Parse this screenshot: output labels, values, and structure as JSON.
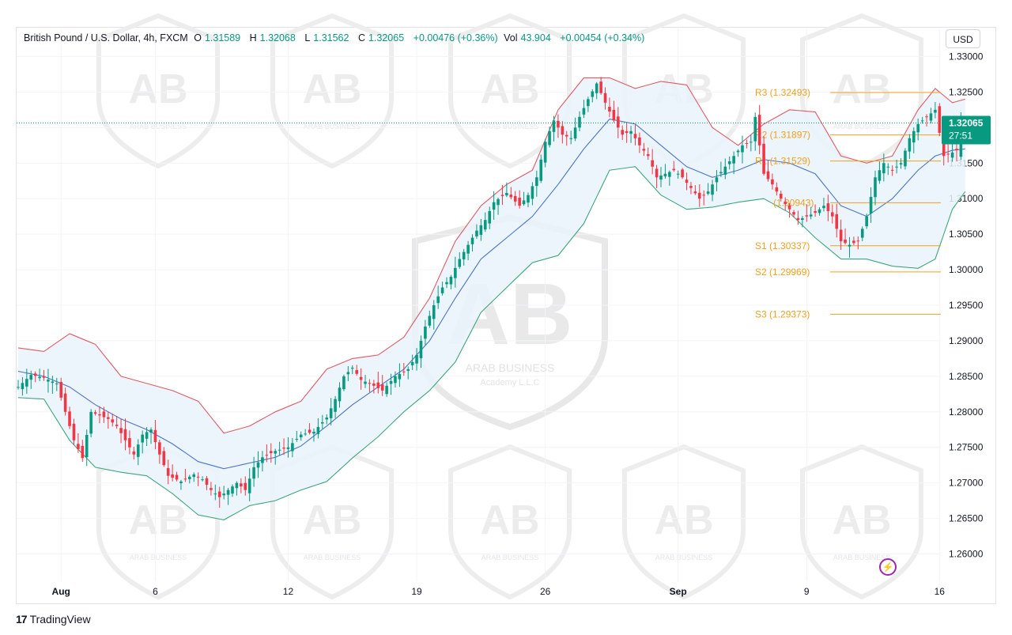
{
  "header": {
    "symbol": "British Pound / U.S. Dollar, 4h, FXCM",
    "open_label": "O",
    "open": "1.31589",
    "high_label": "H",
    "high": "1.32068",
    "low_label": "L",
    "low": "1.31562",
    "close_label": "C",
    "close": "1.32065",
    "change": "+0.00476 (+0.36%)",
    "vol_label": "Vol",
    "vol": "43.904",
    "vol_change": "+0.00454 (+0.34%)"
  },
  "currency_button": "USD",
  "price_tag": {
    "price": "1.32065",
    "countdown": "27:51"
  },
  "branding": {
    "name": "TradingView",
    "logo": "17"
  },
  "watermark": {
    "initials": "AB",
    "line1": "ARAB BUSINESS",
    "line2": "Academy L.L.C"
  },
  "colors": {
    "bull": "#089981",
    "bear": "#f23645",
    "upper_band": "#e05a65",
    "lower_band": "#3fa57e",
    "basis": "#4a73c9",
    "band_fill": "#eaf3fb",
    "pivots": "#f0a020"
  },
  "chart_data": {
    "type": "candlestick",
    "title": "British Pound / U.S. Dollar, 4h, FXCM",
    "ylim": [
      1.2565,
      1.3335
    ],
    "y_ticks": [
      "1.33000",
      "1.32500",
      "1.32000",
      "1.31500",
      "1.31000",
      "1.30500",
      "1.30000",
      "1.29500",
      "1.29000",
      "1.28500",
      "1.28000",
      "1.27500",
      "1.27000",
      "1.26500",
      "1.26000"
    ],
    "x_ticks": [
      {
        "label": "Aug",
        "bar": 10,
        "bold": true
      },
      {
        "label": "6",
        "bar": 32,
        "bold": false
      },
      {
        "label": "12",
        "bar": 63,
        "bold": false
      },
      {
        "label": "19",
        "bar": 93,
        "bold": false
      },
      {
        "label": "26",
        "bar": 123,
        "bold": false
      },
      {
        "label": "Sep",
        "bar": 154,
        "bold": true
      },
      {
        "label": "9",
        "bar": 184,
        "bold": false
      },
      {
        "label": "16",
        "bar": 215,
        "bold": false
      }
    ],
    "current_price": 1.32065,
    "pivots": [
      {
        "name": "R3",
        "value": 1.32493,
        "label": "R3 (1.32493)"
      },
      {
        "name": "R2",
        "value": 1.31897,
        "label": "R2 (1.31897)"
      },
      {
        "name": "R1",
        "value": 1.31529,
        "label": "R1 (1.31529)"
      },
      {
        "name": "P",
        "value": 1.30943,
        "label": "(1.30943)"
      },
      {
        "name": "S1",
        "value": 1.30337,
        "label": "S1 (1.30337)"
      },
      {
        "name": "S2",
        "value": 1.29969,
        "label": "S2 (1.29969)"
      },
      {
        "name": "S3",
        "value": 1.29373,
        "label": "S3 (1.29373)"
      }
    ],
    "close_anchors": [
      [
        0,
        1.2835
      ],
      [
        3,
        1.2852
      ],
      [
        6,
        1.2848
      ],
      [
        9,
        1.284
      ],
      [
        11,
        1.28
      ],
      [
        13,
        1.276
      ],
      [
        15,
        1.2735
      ],
      [
        17,
        1.28
      ],
      [
        19,
        1.2795
      ],
      [
        21,
        1.279
      ],
      [
        23,
        1.278
      ],
      [
        25,
        1.276
      ],
      [
        27,
        1.274
      ],
      [
        29,
        1.2768
      ],
      [
        31,
        1.2775
      ],
      [
        33,
        1.274
      ],
      [
        35,
        1.271
      ],
      [
        38,
        1.2702
      ],
      [
        41,
        1.2712
      ],
      [
        43,
        1.2705
      ],
      [
        45,
        1.269
      ],
      [
        47,
        1.268
      ],
      [
        49,
        1.269
      ],
      [
        51,
        1.27
      ],
      [
        53,
        1.269
      ],
      [
        55,
        1.2722
      ],
      [
        57,
        1.2736
      ],
      [
        60,
        1.2745
      ],
      [
        63,
        1.275
      ],
      [
        66,
        1.2768
      ],
      [
        69,
        1.2772
      ],
      [
        72,
        1.2792
      ],
      [
        74,
        1.2818
      ],
      [
        76,
        1.285
      ],
      [
        78,
        1.2862
      ],
      [
        80,
        1.2845
      ],
      [
        82,
        1.284
      ],
      [
        85,
        1.283
      ],
      [
        88,
        1.285
      ],
      [
        91,
        1.286
      ],
      [
        93,
        1.288
      ],
      [
        95,
        1.292
      ],
      [
        97,
        1.295
      ],
      [
        99,
        1.2975
      ],
      [
        101,
        1.299
      ],
      [
        103,
        1.3015
      ],
      [
        105,
        1.3035
      ],
      [
        107,
        1.3055
      ],
      [
        109,
        1.307
      ],
      [
        111,
        1.3095
      ],
      [
        114,
        1.3108
      ],
      [
        117,
        1.309
      ],
      [
        119,
        1.3105
      ],
      [
        121,
        1.313
      ],
      [
        123,
        1.318
      ],
      [
        125,
        1.321
      ],
      [
        127,
        1.319
      ],
      [
        129,
        1.3185
      ],
      [
        131,
        1.3215
      ],
      [
        133,
        1.324
      ],
      [
        135,
        1.3262
      ],
      [
        137,
        1.3235
      ],
      [
        139,
        1.321
      ],
      [
        141,
        1.319
      ],
      [
        143,
        1.3195
      ],
      [
        145,
        1.3175
      ],
      [
        147,
        1.316
      ],
      [
        149,
        1.313
      ],
      [
        151,
        1.3135
      ],
      [
        153,
        1.314
      ],
      [
        155,
        1.313
      ],
      [
        157,
        1.3115
      ],
      [
        159,
        1.31
      ],
      [
        161,
        1.311
      ],
      [
        163,
        1.313
      ],
      [
        165,
        1.3145
      ],
      [
        167,
        1.316
      ],
      [
        169,
        1.3175
      ],
      [
        171,
        1.318
      ],
      [
        172,
        1.3215
      ],
      [
        174,
        1.3135
      ],
      [
        176,
        1.312
      ],
      [
        178,
        1.31
      ],
      [
        180,
        1.3085
      ],
      [
        182,
        1.307
      ],
      [
        184,
        1.3075
      ],
      [
        186,
        1.308
      ],
      [
        188,
        1.309
      ],
      [
        190,
        1.3075
      ],
      [
        192,
        1.304
      ],
      [
        194,
        1.3035
      ],
      [
        196,
        1.304
      ],
      [
        198,
        1.3075
      ],
      [
        200,
        1.313
      ],
      [
        202,
        1.315
      ],
      [
        204,
        1.314
      ],
      [
        206,
        1.315
      ],
      [
        208,
        1.3185
      ],
      [
        210,
        1.3205
      ],
      [
        212,
        1.3215
      ],
      [
        214,
        1.3225
      ],
      [
        216,
        1.316
      ],
      [
        218,
        1.3165
      ],
      [
        219,
        1.3168
      ],
      [
        220,
        1.32065
      ]
    ],
    "upper_band_points": [
      [
        0,
        1.289
      ],
      [
        6,
        1.2885
      ],
      [
        12,
        1.291
      ],
      [
        18,
        1.2895
      ],
      [
        24,
        1.285
      ],
      [
        30,
        1.284
      ],
      [
        36,
        1.283
      ],
      [
        42,
        1.2815
      ],
      [
        48,
        1.277
      ],
      [
        54,
        1.278
      ],
      [
        60,
        1.28
      ],
      [
        66,
        1.2815
      ],
      [
        72,
        1.286
      ],
      [
        78,
        1.2875
      ],
      [
        84,
        1.288
      ],
      [
        90,
        1.2905
      ],
      [
        96,
        1.296
      ],
      [
        102,
        1.304
      ],
      [
        108,
        1.309
      ],
      [
        114,
        1.312
      ],
      [
        120,
        1.314
      ],
      [
        126,
        1.3225
      ],
      [
        132,
        1.327
      ],
      [
        138,
        1.327
      ],
      [
        144,
        1.3255
      ],
      [
        150,
        1.3265
      ],
      [
        156,
        1.326
      ],
      [
        162,
        1.32
      ],
      [
        168,
        1.3175
      ],
      [
        174,
        1.3205
      ],
      [
        180,
        1.3225
      ],
      [
        186,
        1.3222
      ],
      [
        192,
        1.316
      ],
      [
        198,
        1.315
      ],
      [
        204,
        1.316
      ],
      [
        210,
        1.3225
      ],
      [
        214,
        1.3255
      ],
      [
        218,
        1.3235
      ],
      [
        221,
        1.324
      ]
    ],
    "basis_points": [
      [
        0,
        1.2857
      ],
      [
        6,
        1.285
      ],
      [
        12,
        1.2835
      ],
      [
        18,
        1.281
      ],
      [
        24,
        1.279
      ],
      [
        30,
        1.2775
      ],
      [
        36,
        1.2755
      ],
      [
        42,
        1.273
      ],
      [
        48,
        1.272
      ],
      [
        54,
        1.2728
      ],
      [
        60,
        1.2736
      ],
      [
        66,
        1.2752
      ],
      [
        72,
        1.278
      ],
      [
        78,
        1.281
      ],
      [
        84,
        1.2835
      ],
      [
        90,
        1.286
      ],
      [
        96,
        1.29
      ],
      [
        102,
        1.296
      ],
      [
        108,
        1.3015
      ],
      [
        114,
        1.3045
      ],
      [
        120,
        1.3075
      ],
      [
        126,
        1.312
      ],
      [
        132,
        1.317
      ],
      [
        138,
        1.3212
      ],
      [
        144,
        1.3205
      ],
      [
        150,
        1.3175
      ],
      [
        156,
        1.3145
      ],
      [
        162,
        1.313
      ],
      [
        168,
        1.314
      ],
      [
        174,
        1.3155
      ],
      [
        180,
        1.315
      ],
      [
        186,
        1.3135
      ],
      [
        192,
        1.309
      ],
      [
        198,
        1.3075
      ],
      [
        204,
        1.31
      ],
      [
        210,
        1.314
      ],
      [
        214,
        1.316
      ],
      [
        218,
        1.3168
      ],
      [
        221,
        1.317
      ]
    ],
    "lower_band_points": [
      [
        0,
        1.282
      ],
      [
        6,
        1.2818
      ],
      [
        12,
        1.276
      ],
      [
        18,
        1.2722
      ],
      [
        24,
        1.2715
      ],
      [
        30,
        1.271
      ],
      [
        36,
        1.2685
      ],
      [
        42,
        1.2655
      ],
      [
        48,
        1.2648
      ],
      [
        54,
        1.2668
      ],
      [
        60,
        1.2675
      ],
      [
        66,
        1.269
      ],
      [
        72,
        1.2702
      ],
      [
        78,
        1.2735
      ],
      [
        84,
        1.2765
      ],
      [
        90,
        1.28
      ],
      [
        96,
        1.283
      ],
      [
        102,
        1.287
      ],
      [
        108,
        1.294
      ],
      [
        114,
        1.2975
      ],
      [
        120,
        1.301
      ],
      [
        126,
        1.302
      ],
      [
        132,
        1.3065
      ],
      [
        138,
        1.314
      ],
      [
        144,
        1.3145
      ],
      [
        150,
        1.3105
      ],
      [
        156,
        1.3085
      ],
      [
        162,
        1.3088
      ],
      [
        168,
        1.3095
      ],
      [
        174,
        1.31
      ],
      [
        180,
        1.308
      ],
      [
        186,
        1.3045
      ],
      [
        192,
        1.3015
      ],
      [
        198,
        1.3015
      ],
      [
        204,
        1.3005
      ],
      [
        210,
        1.3002
      ],
      [
        214,
        1.3015
      ],
      [
        218,
        1.3085
      ],
      [
        221,
        1.311
      ]
    ]
  }
}
